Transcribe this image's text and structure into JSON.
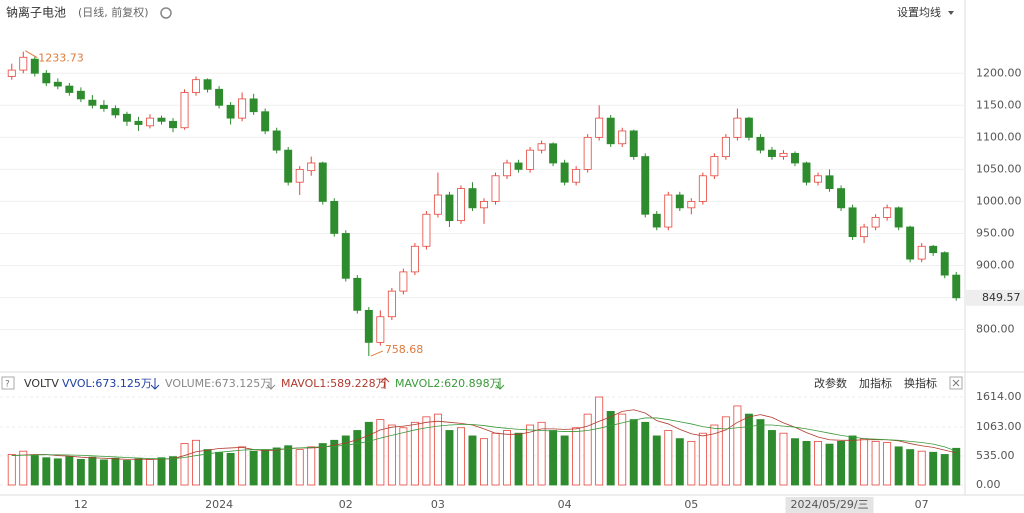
{
  "ui": {
    "title": "钠离子电池",
    "subtitle": "(日线, 前复权)",
    "ma_setting": "设置均线",
    "indicator": "VOLTV",
    "legend": [
      "VVOL:673.125万",
      "VOLUME:673.125万",
      "MAVOL1:589.228万",
      "MAVOL2:620.898万"
    ],
    "buttons": [
      "改参数",
      "加指标",
      "换指标"
    ],
    "cursor_date": "2024/05/29/三"
  },
  "chart_data": [
    {
      "type": "candlestick",
      "up_color": "#e8453c",
      "down_color": "#2e8b2e",
      "ohlc": [
        [
          1195,
          1215,
          1190,
          1205
        ],
        [
          1205,
          1233.73,
          1200,
          1225
        ],
        [
          1222,
          1226,
          1195,
          1200
        ],
        [
          1200,
          1205,
          1180,
          1185
        ],
        [
          1186,
          1192,
          1175,
          1180
        ],
        [
          1180,
          1185,
          1165,
          1170
        ],
        [
          1172,
          1178,
          1155,
          1160
        ],
        [
          1158,
          1166,
          1145,
          1150
        ],
        [
          1150,
          1158,
          1140,
          1145
        ],
        [
          1145,
          1150,
          1130,
          1135
        ],
        [
          1136,
          1140,
          1118,
          1125
        ],
        [
          1125,
          1132,
          1110,
          1120
        ],
        [
          1118,
          1136,
          1114,
          1130
        ],
        [
          1130,
          1134,
          1120,
          1125
        ],
        [
          1125,
          1130,
          1108,
          1115
        ],
        [
          1115,
          1175,
          1112,
          1170
        ],
        [
          1170,
          1195,
          1165,
          1190
        ],
        [
          1190,
          1192,
          1170,
          1175
        ],
        [
          1175,
          1180,
          1145,
          1150
        ],
        [
          1150,
          1155,
          1120,
          1130
        ],
        [
          1130,
          1170,
          1125,
          1160
        ],
        [
          1160,
          1168,
          1135,
          1140
        ],
        [
          1140,
          1145,
          1105,
          1110
        ],
        [
          1110,
          1115,
          1075,
          1080
        ],
        [
          1080,
          1085,
          1025,
          1030
        ],
        [
          1030,
          1055,
          1010,
          1050
        ],
        [
          1048,
          1070,
          1040,
          1060
        ],
        [
          1060,
          1062,
          995,
          1000
        ],
        [
          1000,
          1005,
          945,
          950
        ],
        [
          950,
          955,
          875,
          880
        ],
        [
          880,
          885,
          825,
          830
        ],
        [
          830,
          835,
          758.68,
          780
        ],
        [
          780,
          830,
          775,
          820
        ],
        [
          820,
          865,
          815,
          860
        ],
        [
          860,
          895,
          855,
          890
        ],
        [
          890,
          935,
          885,
          930
        ],
        [
          930,
          985,
          925,
          980
        ],
        [
          980,
          1045,
          975,
          1010
        ],
        [
          1010,
          1015,
          960,
          970
        ],
        [
          970,
          1025,
          965,
          1020
        ],
        [
          1020,
          1030,
          985,
          990
        ],
        [
          990,
          1005,
          965,
          1000
        ],
        [
          1000,
          1045,
          995,
          1040
        ],
        [
          1040,
          1065,
          1035,
          1060
        ],
        [
          1060,
          1065,
          1045,
          1050
        ],
        [
          1050,
          1085,
          1045,
          1080
        ],
        [
          1080,
          1095,
          1075,
          1090
        ],
        [
          1090,
          1092,
          1055,
          1060
        ],
        [
          1060,
          1065,
          1025,
          1030
        ],
        [
          1030,
          1055,
          1025,
          1050
        ],
        [
          1050,
          1105,
          1045,
          1100
        ],
        [
          1100,
          1150,
          1095,
          1130
        ],
        [
          1130,
          1135,
          1085,
          1090
        ],
        [
          1090,
          1115,
          1085,
          1110
        ],
        [
          1110,
          1112,
          1065,
          1070
        ],
        [
          1070,
          1075,
          975,
          980
        ],
        [
          980,
          985,
          955,
          960
        ],
        [
          960,
          1015,
          955,
          1010
        ],
        [
          1010,
          1015,
          985,
          990
        ],
        [
          990,
          1005,
          980,
          1000
        ],
        [
          1000,
          1045,
          995,
          1040
        ],
        [
          1040,
          1075,
          1035,
          1070
        ],
        [
          1070,
          1105,
          1065,
          1100
        ],
        [
          1100,
          1145,
          1095,
          1130
        ],
        [
          1130,
          1132,
          1095,
          1100
        ],
        [
          1100,
          1105,
          1075,
          1080
        ],
        [
          1080,
          1085,
          1065,
          1070
        ],
        [
          1070,
          1080,
          1065,
          1075
        ],
        [
          1075,
          1078,
          1055,
          1060
        ],
        [
          1060,
          1062,
          1025,
          1030
        ],
        [
          1030,
          1045,
          1025,
          1040
        ],
        [
          1040,
          1050,
          1015,
          1020
        ],
        [
          1020,
          1025,
          985,
          990
        ],
        [
          990,
          995,
          940,
          945
        ],
        [
          945,
          965,
          935,
          960
        ],
        [
          960,
          980,
          955,
          975
        ],
        [
          975,
          995,
          970,
          990
        ],
        [
          990,
          992,
          955,
          960
        ],
        [
          960,
          962,
          905,
          910
        ],
        [
          910,
          935,
          905,
          930
        ],
        [
          930,
          932,
          915,
          920
        ],
        [
          920,
          922,
          880,
          885
        ],
        [
          885,
          890,
          845,
          849.57
        ]
      ],
      "categories": [
        null,
        null,
        null,
        null,
        null,
        null,
        "12",
        null,
        null,
        null,
        null,
        null,
        null,
        null,
        null,
        null,
        null,
        null,
        "2024",
        null,
        null,
        null,
        null,
        null,
        null,
        null,
        null,
        null,
        null,
        "02",
        null,
        null,
        null,
        null,
        null,
        null,
        null,
        "03",
        null,
        null,
        null,
        null,
        null,
        null,
        null,
        null,
        null,
        null,
        "04",
        null,
        null,
        null,
        null,
        null,
        null,
        null,
        null,
        null,
        null,
        "05",
        null,
        null,
        null,
        null,
        null,
        null,
        null,
        null,
        null,
        null,
        null,
        null,
        null,
        null,
        null,
        null,
        null,
        null,
        null,
        "07",
        null,
        null,
        null
      ],
      "ylim": [
        740,
        1305
      ],
      "yticks": [
        {
          "value": 800,
          "label": "800.00"
        },
        {
          "value": 850,
          "label": "850.00"
        },
        {
          "value": 900,
          "label": "900.00"
        },
        {
          "value": 950,
          "label": "950.00"
        },
        {
          "value": 1000,
          "label": "1000.00"
        },
        {
          "value": 1050,
          "label": "1050.00"
        },
        {
          "value": 1100,
          "label": "1100.00"
        },
        {
          "value": 1150,
          "label": "1150.00"
        },
        {
          "value": 1200,
          "label": "1200.00"
        }
      ]
    },
    {
      "type": "bar",
      "ylim": [
        0,
        1614
      ],
      "yticks": [
        {
          "value": 0,
          "label": "0.00"
        },
        {
          "value": 535,
          "label": "535.00"
        },
        {
          "value": 1063,
          "label": "1063.00"
        },
        {
          "value": 1614,
          "label": "1614.00"
        }
      ],
      "series": [
        {
          "values": [
            560,
            620,
            540,
            500,
            480,
            520,
            470,
            510,
            460,
            490,
            450,
            480,
            470,
            500,
            520,
            760,
            820,
            650,
            600,
            580,
            700,
            620,
            640,
            680,
            720,
            650,
            700,
            760,
            820,
            900,
            1000,
            1150,
            1200,
            1100,
            1050,
            1150,
            1250,
            1300,
            1000,
            1050,
            900,
            850,
            950,
            1000,
            950,
            1100,
            1150,
            1000,
            900,
            1050,
            1300,
            1614,
            1350,
            1300,
            1200,
            1150,
            900,
            1000,
            850,
            800,
            950,
            1100,
            1250,
            1450,
            1300,
            1200,
            1000,
            950,
            850,
            800,
            800,
            750,
            800,
            900,
            850,
            800,
            780,
            700,
            650,
            620,
            600,
            560,
            673.125
          ]
        },
        {
          "color": "#b03a2e",
          "values": [
            540,
            550,
            560,
            560,
            540,
            530,
            510,
            500,
            490,
            480,
            470,
            475,
            470,
            475,
            485,
            540,
            610,
            640,
            670,
            680,
            690,
            650,
            630,
            640,
            670,
            680,
            680,
            690,
            730,
            770,
            830,
            910,
            1010,
            1060,
            1080,
            1110,
            1150,
            1170,
            1150,
            1130,
            1100,
            1030,
            950,
            930,
            930,
            970,
            1030,
            1030,
            1020,
            1030,
            1080,
            1170,
            1250,
            1350,
            1380,
            1320,
            1180,
            1120,
            1020,
            940,
            900,
            940,
            1010,
            1150,
            1250,
            1290,
            1240,
            1140,
            1060,
            960,
            880,
            830,
            820,
            820,
            830,
            830,
            830,
            810,
            760,
            720,
            690,
            640,
            589.228
          ]
        },
        {
          "color": "#3a9a3a",
          "values": [
            540,
            545,
            550,
            555,
            555,
            550,
            545,
            535,
            525,
            515,
            505,
            495,
            485,
            480,
            480,
            505,
            540,
            570,
            600,
            620,
            640,
            650,
            650,
            655,
            665,
            680,
            690,
            700,
            710,
            730,
            760,
            800,
            860,
            910,
            960,
            1010,
            1050,
            1080,
            1100,
            1110,
            1110,
            1090,
            1060,
            1040,
            1020,
            1010,
            1000,
            990,
            980,
            980,
            1000,
            1040,
            1090,
            1140,
            1190,
            1230,
            1230,
            1200,
            1160,
            1120,
            1070,
            1040,
            1030,
            1050,
            1070,
            1100,
            1100,
            1080,
            1060,
            1030,
            990,
            950,
            910,
            880,
            850,
            840,
            830,
            820,
            800,
            780,
            750,
            700,
            620.898
          ]
        }
      ]
    }
  ]
}
